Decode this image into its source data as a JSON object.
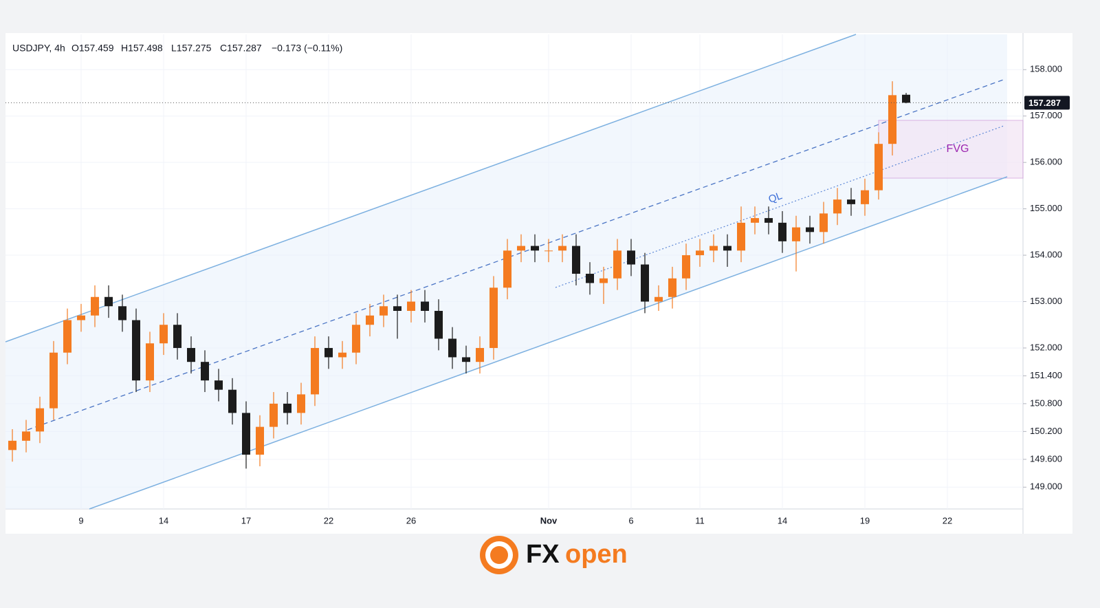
{
  "chart_data": {
    "type": "candlestick",
    "title": "USDJPY, 4h",
    "header_values": [
      "O157.459",
      "H157.498",
      "L157.275",
      "C157.287",
      "−0.173 (−0.11%)"
    ],
    "categories": [
      null,
      null,
      null,
      null,
      null,
      "9",
      null,
      null,
      null,
      null,
      null,
      "14",
      null,
      null,
      null,
      null,
      null,
      "17",
      null,
      null,
      null,
      null,
      null,
      "22",
      null,
      null,
      null,
      null,
      null,
      "26",
      null,
      null,
      null,
      null,
      null,
      null,
      null,
      null,
      null,
      "Nov",
      null,
      null,
      null,
      null,
      null,
      "6",
      null,
      null,
      null,
      null,
      "11",
      null,
      null,
      null,
      null,
      null,
      "14",
      null,
      null,
      null,
      null,
      null,
      "19",
      null,
      null,
      null,
      null,
      null,
      "22",
      null,
      null,
      null,
      null,
      null
    ],
    "open": [
      149.8,
      150.0,
      150.2,
      150.7,
      151.9,
      152.6,
      152.7,
      153.1,
      152.9,
      152.6,
      151.3,
      152.1,
      152.5,
      152.0,
      151.7,
      151.3,
      151.1,
      150.6,
      149.7,
      150.3,
      150.8,
      150.6,
      151.0,
      152.0,
      151.8,
      151.9,
      152.5,
      152.7,
      152.9,
      152.8,
      153.0,
      152.8,
      152.2,
      151.8,
      151.7,
      152.0,
      153.3,
      154.1,
      154.2,
      154.1,
      154.1,
      154.2,
      153.6,
      153.4,
      153.5,
      154.1,
      153.8,
      153.0,
      153.1,
      153.5,
      154.0,
      154.1,
      154.2,
      154.1,
      154.7,
      154.8,
      154.7,
      154.3,
      154.6,
      154.5,
      154.9,
      155.2,
      155.1,
      155.4,
      156.4,
      157.459,
      null,
      null,
      null,
      null,
      null,
      null,
      null,
      null
    ],
    "high": [
      150.25,
      150.45,
      150.95,
      152.15,
      152.85,
      152.95,
      153.35,
      153.35,
      153.15,
      152.85,
      152.35,
      152.75,
      152.75,
      152.25,
      151.95,
      151.55,
      151.35,
      150.85,
      150.55,
      151.05,
      151.05,
      151.25,
      152.25,
      152.25,
      152.15,
      152.75,
      152.95,
      153.15,
      153.15,
      153.25,
      153.25,
      153.05,
      152.45,
      152.05,
      152.25,
      153.55,
      154.35,
      154.45,
      154.45,
      154.35,
      154.45,
      154.45,
      153.85,
      153.75,
      154.35,
      154.35,
      154.05,
      153.35,
      153.75,
      154.25,
      154.35,
      154.45,
      154.45,
      155.05,
      155.05,
      155.05,
      154.95,
      154.85,
      154.85,
      155.15,
      155.45,
      155.45,
      155.65,
      156.65,
      157.75,
      157.498,
      null,
      null,
      null,
      null,
      null,
      null,
      null,
      null
    ],
    "low": [
      149.55,
      149.75,
      149.95,
      150.45,
      151.65,
      152.35,
      152.45,
      152.65,
      152.35,
      151.05,
      151.05,
      151.85,
      151.75,
      151.45,
      151.05,
      150.85,
      150.35,
      149.4,
      149.45,
      150.05,
      150.35,
      150.35,
      150.75,
      151.55,
      151.55,
      151.65,
      152.25,
      152.45,
      152.2,
      152.55,
      152.55,
      151.95,
      151.55,
      151.45,
      151.45,
      151.75,
      153.05,
      153.85,
      153.85,
      153.85,
      153.85,
      153.35,
      153.15,
      152.95,
      153.25,
      153.55,
      152.75,
      152.8,
      152.85,
      153.25,
      153.75,
      153.85,
      153.75,
      153.85,
      154.45,
      154.45,
      154.05,
      153.65,
      154.25,
      154.25,
      154.65,
      154.85,
      154.85,
      155.2,
      156.15,
      157.275,
      null,
      null,
      null,
      null,
      null,
      null,
      null,
      null
    ],
    "close": [
      150.0,
      150.2,
      150.7,
      151.9,
      152.6,
      152.7,
      153.1,
      152.9,
      152.6,
      151.3,
      152.1,
      152.5,
      152.0,
      151.7,
      151.3,
      151.1,
      150.6,
      149.7,
      150.3,
      150.8,
      150.6,
      151.0,
      152.0,
      151.8,
      151.9,
      152.5,
      152.7,
      152.9,
      152.8,
      153.0,
      152.8,
      152.2,
      151.8,
      151.7,
      152.0,
      153.3,
      154.1,
      154.2,
      154.1,
      154.1,
      154.2,
      153.6,
      153.4,
      153.5,
      154.1,
      153.8,
      153.0,
      153.1,
      153.5,
      154.0,
      154.1,
      154.2,
      154.1,
      154.7,
      154.8,
      154.7,
      154.3,
      154.6,
      154.5,
      154.9,
      155.2,
      155.1,
      155.4,
      156.4,
      157.45,
      157.287,
      null,
      null,
      null,
      null,
      null,
      null,
      null,
      null
    ],
    "up_color": "#f47b20",
    "down_color": "#1c1c1c",
    "ylim": [
      148.53,
      158.76
    ],
    "yticks": [
      {
        "value": 158,
        "label": "158.000"
      },
      {
        "value": 157,
        "label": "157.000"
      },
      {
        "value": 156,
        "label": "156.000"
      },
      {
        "value": 155,
        "label": "155.000"
      },
      {
        "value": 154,
        "label": "154.000"
      },
      {
        "value": 153,
        "label": "153.000"
      },
      {
        "value": 152,
        "label": "152.000"
      },
      {
        "value": 151.4,
        "label": "151.400"
      },
      {
        "value": 150.8,
        "label": "150.800"
      },
      {
        "value": 150.2,
        "label": "150.200"
      },
      {
        "value": 149.6,
        "label": "149.600"
      },
      {
        "value": 149,
        "label": "149.000"
      }
    ],
    "last_price": 157.287,
    "grid": true,
    "annotations": [
      "QL",
      "FVG"
    ]
  },
  "logo": {
    "fx": "FX",
    "open": "open"
  }
}
